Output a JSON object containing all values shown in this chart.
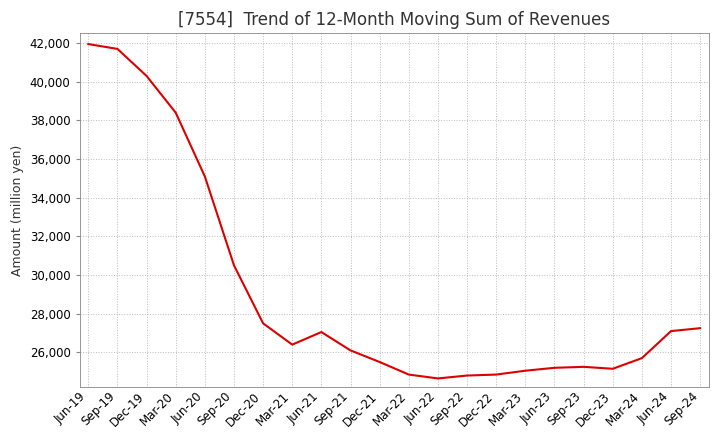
{
  "title": "[7554]  Trend of 12-Month Moving Sum of Revenues",
  "ylabel": "Amount (million yen)",
  "line_color": "#dd0000",
  "background_color": "#ffffff",
  "plot_bg_color": "#ffffff",
  "grid_color": "#bbbbbb",
  "ylim": [
    24200,
    42500
  ],
  "yticks": [
    26000,
    28000,
    30000,
    32000,
    34000,
    36000,
    38000,
    40000,
    42000
  ],
  "x_labels": [
    "Jun-19",
    "Sep-19",
    "Dec-19",
    "Mar-20",
    "Jun-20",
    "Sep-20",
    "Dec-20",
    "Mar-21",
    "Jun-21",
    "Sep-21",
    "Dec-21",
    "Mar-22",
    "Jun-22",
    "Sep-22",
    "Dec-22",
    "Mar-23",
    "Jun-23",
    "Sep-23",
    "Dec-23",
    "Mar-24",
    "Jun-24",
    "Sep-24"
  ],
  "values": [
    41950,
    41700,
    40300,
    38400,
    35100,
    30500,
    27500,
    26400,
    27050,
    26100,
    25500,
    24850,
    24650,
    24800,
    24850,
    25050,
    25200,
    25250,
    25150,
    25700,
    27100,
    27250
  ],
  "title_color": "#333333",
  "title_fontsize": 12,
  "ylabel_fontsize": 9,
  "tick_fontsize": 8.5
}
